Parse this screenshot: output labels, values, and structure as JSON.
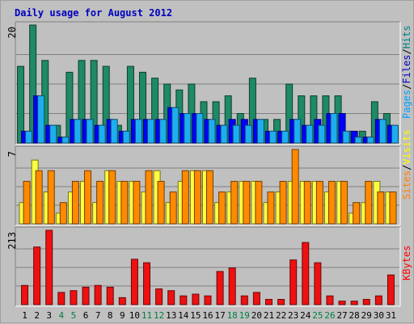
{
  "chart_data": {
    "type": "bar",
    "title": "Daily usage for August 2012",
    "days": [
      "1",
      "2",
      "3",
      "4",
      "5",
      "6",
      "7",
      "8",
      "9",
      "10",
      "11",
      "12",
      "13",
      "14",
      "15",
      "16",
      "17",
      "18",
      "19",
      "20",
      "21",
      "22",
      "23",
      "24",
      "25",
      "26",
      "27",
      "28",
      "29",
      "30",
      "31"
    ],
    "weekend_days": [
      "4",
      "5",
      "11",
      "12",
      "18",
      "19",
      "25",
      "26"
    ],
    "panels": [
      {
        "id": "hits",
        "scale_max": 20,
        "scale_label": "20",
        "legend": [
          "Pages",
          "/",
          "Files",
          "/",
          "Hits"
        ],
        "legend_colors": [
          "#00a0ff",
          "#000000",
          "#0000c0",
          "#000000",
          "#008080"
        ],
        "series": [
          {
            "name": "Hits",
            "color": "#1e8a66",
            "values": [
              13,
              20,
              14,
              3,
              12,
              14,
              14,
              13,
              3,
              13,
              12,
              11,
              10,
              9,
              10,
              7,
              7,
              8,
              5,
              11,
              4,
              4,
              10,
              8,
              8,
              8,
              8,
              2,
              2,
              7,
              5
            ]
          },
          {
            "name": "Files",
            "color": "#0000ff",
            "values": [
              2,
              8,
              3,
              1,
              4,
              4,
              3,
              4,
              2,
              4,
              4,
              4,
              6,
              5,
              5,
              4,
              3,
              4,
              4,
              4,
              2,
              2,
              4,
              3,
              4,
              5,
              5,
              2,
              1,
              4,
              3
            ]
          },
          {
            "name": "Pages",
            "color": "#1eaef0",
            "values": [
              2,
              8,
              3,
              1,
              4,
              4,
              3,
              4,
              2,
              4,
              4,
              4,
              6,
              5,
              5,
              4,
              3,
              3,
              3,
              4,
              2,
              2,
              4,
              3,
              3,
              5,
              2,
              1,
              1,
              4,
              3
            ]
          }
        ]
      },
      {
        "id": "visits",
        "scale_max": 7,
        "scale_label": "7",
        "legend": [
          "Sites",
          "/",
          "Visits"
        ],
        "legend_colors": [
          "#ff8000",
          "#000000",
          "#ffff00"
        ],
        "series": [
          {
            "name": "Visits",
            "color": "#ffff40",
            "values": [
              2,
              6,
              3,
              1,
              3,
              4,
              2,
              5,
              4,
              4,
              3,
              5,
              2,
              4,
              5,
              5,
              2,
              3,
              4,
              4,
              2,
              3,
              4,
              4,
              4,
              3,
              4,
              1,
              2,
              4,
              3
            ]
          },
          {
            "name": "Sites",
            "color": "#ff8a00",
            "values": [
              4,
              5,
              5,
              2,
              4,
              5,
              4,
              5,
              4,
              4,
              5,
              4,
              3,
              5,
              5,
              5,
              3,
              4,
              4,
              4,
              3,
              4,
              7,
              4,
              4,
              4,
              4,
              2,
              4,
              3,
              3
            ]
          }
        ]
      },
      {
        "id": "kbytes",
        "scale_max": 213,
        "scale_label": "213",
        "legend": [
          "KBytes"
        ],
        "legend_colors": [
          "#ff0000"
        ],
        "series": [
          {
            "name": "KBytes",
            "color": "#ee1111",
            "values": [
              55,
              165,
              213,
              35,
              40,
              50,
              55,
              50,
              20,
              130,
              120,
              45,
              40,
              25,
              30,
              25,
              95,
              105,
              25,
              35,
              15,
              15,
              128,
              178,
              120,
              25,
              10,
              10,
              15,
              25,
              85
            ]
          }
        ]
      }
    ]
  }
}
